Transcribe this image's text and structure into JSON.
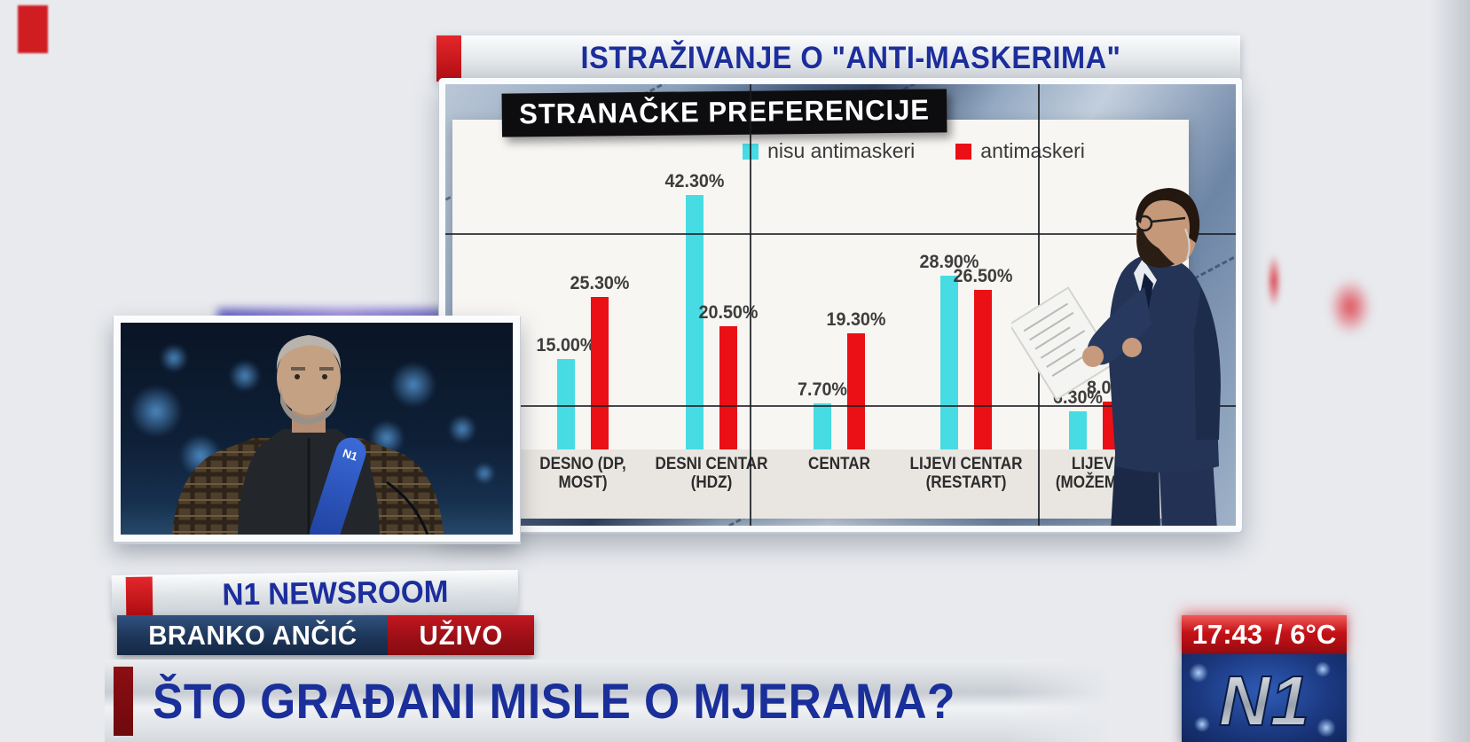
{
  "header": {
    "title": "ISTRAŽIVANJE O \"ANTI-MASKERIMA\""
  },
  "screen": {
    "chart_title": "STRANAČKE PREFERENCIJE",
    "legend": [
      {
        "label": "nisu antimaskeri",
        "color": "#47dce3"
      },
      {
        "label": "antimaskeri",
        "color": "#ea1016"
      }
    ]
  },
  "chart_data": {
    "type": "bar",
    "title": "STRANAČKE PREFERENCIJE",
    "legend_position": "top",
    "unit": "%",
    "ylim": [
      0,
      45
    ],
    "grid": false,
    "categories": [
      "DESNO (DP, MOST)",
      "DESNI CENTAR (HDZ)",
      "CENTAR",
      "LIJEVI CENTAR (RESTART)",
      "LIJEVI (MOŽEMO)"
    ],
    "categories_display": [
      "DESNO (DP, MOST)",
      "DESNI CENTAR\n(HDZ)",
      "CENTAR",
      "LIJEVI CENTAR\n(RESTART)",
      "LIJEVI\n(MOŽEMO)"
    ],
    "series": [
      {
        "name": "nisu antimaskeri",
        "color": "#47dce3",
        "values": [
          15.0,
          42.3,
          7.7,
          28.9,
          6.3
        ]
      },
      {
        "name": "antimaskeri",
        "color": "#ea1016",
        "values": [
          25.3,
          20.5,
          19.3,
          26.5,
          8.0
        ]
      }
    ],
    "value_labels": [
      [
        "15.00%",
        "42.30%",
        "7.70%",
        "28.90%",
        "6.30%"
      ],
      [
        "25.30%",
        "20.50%",
        "19.30%",
        "26.50%",
        "8.00%"
      ]
    ]
  },
  "newsroom": {
    "label": "N1 NEWSROOM"
  },
  "lower_third": {
    "name": "BRANKO ANČIĆ",
    "live_badge": "UŽIVO",
    "headline": "ŠTO GRAĐANI MISLE O MJERAMA?"
  },
  "status": {
    "time": "17:43",
    "temperature": "/ 6°C"
  },
  "channel": {
    "logo": "N1",
    "mic_logo": "N1"
  }
}
